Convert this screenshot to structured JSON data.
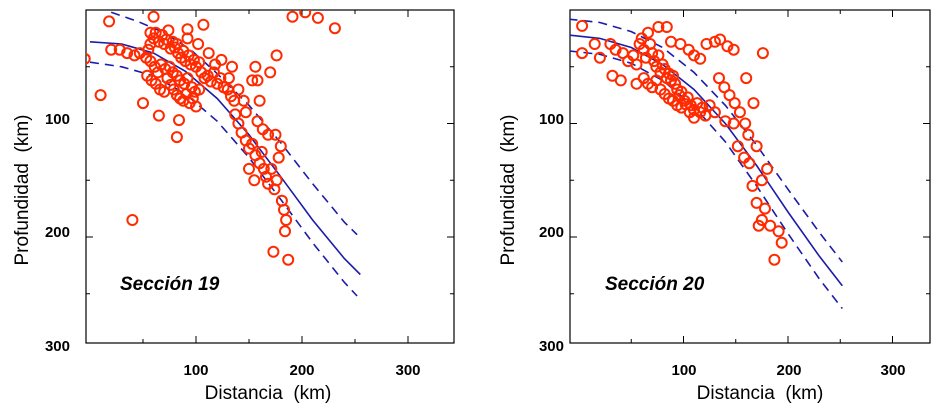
{
  "chart_data": [
    {
      "type": "scatter",
      "title": "",
      "annotation": "Sección 19",
      "xlabel": "Distancia  (km)",
      "ylabel": "Profundidad  (km)",
      "xlim": [
        0,
        345
      ],
      "ylim": [
        300,
        0
      ],
      "x_ticks": [
        100,
        200,
        300
      ],
      "y_ticks": [
        100,
        200,
        300
      ],
      "y_inverted": true,
      "marker_color": "#ff2a00",
      "curve_color": "#1c1ca8",
      "points": [
        [
          18,
          10
        ],
        [
          60,
          6
        ],
        [
          107,
          13
        ],
        [
          -5,
          43
        ],
        [
          10,
          75
        ],
        [
          20,
          35
        ],
        [
          28,
          35
        ],
        [
          35,
          38
        ],
        [
          42,
          40
        ],
        [
          47,
          38
        ],
        [
          53,
          42
        ],
        [
          55,
          35
        ],
        [
          57,
          30
        ],
        [
          60,
          25
        ],
        [
          62,
          20
        ],
        [
          65,
          28
        ],
        [
          68,
          22
        ],
        [
          70,
          30
        ],
        [
          72,
          26
        ],
        [
          74,
          18
        ],
        [
          76,
          34
        ],
        [
          78,
          28
        ],
        [
          80,
          33
        ],
        [
          83,
          38
        ],
        [
          86,
          42
        ],
        [
          88,
          36
        ],
        [
          90,
          45
        ],
        [
          93,
          40
        ],
        [
          95,
          48
        ],
        [
          98,
          44
        ],
        [
          100,
          50
        ],
        [
          103,
          46
        ],
        [
          105,
          55
        ],
        [
          108,
          60
        ],
        [
          111,
          58
        ],
        [
          114,
          63
        ],
        [
          117,
          55
        ],
        [
          120,
          65
        ],
        [
          123,
          60
        ],
        [
          126,
          68
        ],
        [
          130,
          70
        ],
        [
          133,
          76
        ],
        [
          136,
          80
        ],
        [
          54,
          58
        ],
        [
          58,
          62
        ],
        [
          62,
          65
        ],
        [
          66,
          70
        ],
        [
          70,
          72
        ],
        [
          73,
          60
        ],
        [
          76,
          66
        ],
        [
          79,
          70
        ],
        [
          82,
          75
        ],
        [
          85,
          78
        ],
        [
          88,
          80
        ],
        [
          91,
          74
        ],
        [
          94,
          82
        ],
        [
          97,
          78
        ],
        [
          100,
          85
        ],
        [
          57,
          45
        ],
        [
          61,
          50
        ],
        [
          64,
          55
        ],
        [
          67,
          48
        ],
        [
          71,
          52
        ],
        [
          75,
          50
        ],
        [
          78,
          55
        ],
        [
          82,
          58
        ],
        [
          85,
          62
        ],
        [
          89,
          65
        ],
        [
          92,
          60
        ],
        [
          96,
          68
        ],
        [
          99,
          72
        ],
        [
          103,
          70
        ],
        [
          65,
          93
        ],
        [
          84,
          97
        ],
        [
          82,
          112
        ],
        [
          50,
          82
        ],
        [
          40,
          185
        ],
        [
          82,
          30
        ],
        [
          92,
          25
        ],
        [
          102,
          30
        ],
        [
          112,
          38
        ],
        [
          118,
          48
        ],
        [
          124,
          44
        ],
        [
          92,
          17
        ],
        [
          57,
          20
        ],
        [
          140,
          100
        ],
        [
          143,
          108
        ],
        [
          147,
          115
        ],
        [
          150,
          122
        ],
        [
          153,
          118
        ],
        [
          156,
          128
        ],
        [
          160,
          135
        ],
        [
          162,
          125
        ],
        [
          164,
          140
        ],
        [
          166,
          147
        ],
        [
          168,
          153
        ],
        [
          171,
          140
        ],
        [
          174,
          158
        ],
        [
          176,
          150
        ],
        [
          178,
          130
        ],
        [
          181,
          168
        ],
        [
          183,
          176
        ],
        [
          185,
          185
        ],
        [
          184,
          195
        ],
        [
          187,
          220
        ],
        [
          180,
          120
        ],
        [
          175,
          110
        ],
        [
          150,
          140
        ],
        [
          155,
          150
        ],
        [
          173,
          213
        ],
        [
          153,
          62
        ],
        [
          158,
          62
        ],
        [
          156,
          50
        ],
        [
          160,
          80
        ],
        [
          176,
          40
        ],
        [
          170,
          55
        ],
        [
          145,
          80
        ],
        [
          147,
          90
        ],
        [
          137,
          92
        ],
        [
          140,
          70
        ],
        [
          131,
          60
        ],
        [
          134,
          50
        ],
        [
          163,
          105
        ],
        [
          168,
          110
        ],
        [
          158,
          98
        ],
        [
          191,
          6
        ],
        [
          203,
          2
        ],
        [
          215,
          7
        ],
        [
          231,
          16
        ]
      ],
      "curves": [
        {
          "style": "solid",
          "x": [
            0,
            30,
            60,
            90,
            120,
            150,
            180,
            210,
            240,
            255
          ],
          "y": [
            28,
            30,
            38,
            54,
            78,
            110,
            147,
            185,
            219,
            233
          ]
        },
        {
          "style": "dashed",
          "x": [
            20,
            45,
            70,
            95,
            120,
            150,
            180,
            210,
            240,
            252
          ],
          "y": [
            2,
            10,
            20,
            35,
            56,
            84,
            117,
            153,
            187,
            198
          ]
        },
        {
          "style": "dashed",
          "x": [
            0,
            30,
            60,
            90,
            120,
            150,
            180,
            210,
            240,
            252
          ],
          "y": [
            46,
            50,
            58,
            74,
            98,
            130,
            167,
            205,
            240,
            252
          ]
        }
      ]
    },
    {
      "type": "scatter",
      "title": "",
      "annotation": "Sección 20",
      "xlabel": "Distancia  (km)",
      "ylabel": "Profundidad  (km)",
      "xlim": [
        0,
        345
      ],
      "ylim": [
        300,
        0
      ],
      "x_ticks": [
        100,
        200,
        300
      ],
      "y_ticks": [
        100,
        200,
        300
      ],
      "y_inverted": true,
      "marker_color": "#ff2a00",
      "curve_color": "#1c1ca8",
      "points": [
        [
          3,
          14
        ],
        [
          3,
          38
        ],
        [
          15,
          30
        ],
        [
          20,
          42
        ],
        [
          30,
          30
        ],
        [
          35,
          35
        ],
        [
          42,
          38
        ],
        [
          47,
          45
        ],
        [
          52,
          40
        ],
        [
          55,
          48
        ],
        [
          58,
          30
        ],
        [
          60,
          25
        ],
        [
          62,
          35
        ],
        [
          64,
          42
        ],
        [
          66,
          20
        ],
        [
          68,
          30
        ],
        [
          70,
          38
        ],
        [
          72,
          45
        ],
        [
          74,
          50
        ],
        [
          76,
          40
        ],
        [
          78,
          55
        ],
        [
          80,
          48
        ],
        [
          82,
          52
        ],
        [
          84,
          60
        ],
        [
          86,
          56
        ],
        [
          88,
          62
        ],
        [
          90,
          58
        ],
        [
          92,
          65
        ],
        [
          94,
          70
        ],
        [
          96,
          75
        ],
        [
          98,
          72
        ],
        [
          101,
          80
        ],
        [
          104,
          77
        ],
        [
          107,
          84
        ],
        [
          110,
          88
        ],
        [
          113,
          82
        ],
        [
          116,
          90
        ],
        [
          118,
          86
        ],
        [
          121,
          93
        ],
        [
          125,
          84
        ],
        [
          130,
          90
        ],
        [
          76,
          15
        ],
        [
          88,
          28
        ],
        [
          97,
          30
        ],
        [
          105,
          35
        ],
        [
          110,
          40
        ],
        [
          116,
          43
        ],
        [
          122,
          30
        ],
        [
          130,
          28
        ],
        [
          135,
          26
        ],
        [
          142,
          32
        ],
        [
          148,
          35
        ],
        [
          62,
          60
        ],
        [
          66,
          65
        ],
        [
          70,
          68
        ],
        [
          74,
          62
        ],
        [
          78,
          70
        ],
        [
          82,
          74
        ],
        [
          86,
          78
        ],
        [
          90,
          80
        ],
        [
          94,
          84
        ],
        [
          98,
          86
        ],
        [
          102,
          83
        ],
        [
          106,
          90
        ],
        [
          110,
          95
        ],
        [
          40,
          62
        ],
        [
          32,
          58
        ],
        [
          55,
          65
        ],
        [
          84,
          15
        ],
        [
          176,
          38
        ],
        [
          134,
          60
        ],
        [
          139,
          68
        ],
        [
          144,
          75
        ],
        [
          149,
          82
        ],
        [
          154,
          90
        ],
        [
          159,
          100
        ],
        [
          162,
          110
        ],
        [
          167,
          82
        ],
        [
          160,
          60
        ],
        [
          172,
          190
        ],
        [
          175,
          185
        ],
        [
          178,
          175
        ],
        [
          183,
          190
        ],
        [
          187,
          220
        ],
        [
          191,
          195
        ],
        [
          194,
          205
        ],
        [
          166,
          155
        ],
        [
          170,
          170
        ],
        [
          175,
          150
        ],
        [
          180,
          140
        ],
        [
          158,
          130
        ],
        [
          152,
          120
        ],
        [
          163,
          135
        ],
        [
          170,
          120
        ],
        [
          148,
          100
        ],
        [
          140,
          98
        ]
      ],
      "curves": [
        {
          "style": "solid",
          "x": [
            -10,
            20,
            50,
            80,
            110,
            140,
            170,
            200,
            230,
            252
          ],
          "y": [
            22,
            25,
            33,
            48,
            70,
            100,
            137,
            178,
            217,
            243
          ]
        },
        {
          "style": "dashed",
          "x": [
            -10,
            20,
            50,
            80,
            110,
            140,
            170,
            200,
            230,
            252
          ],
          "y": [
            8,
            11,
            19,
            33,
            55,
            84,
            119,
            158,
            196,
            222
          ]
        },
        {
          "style": "dashed",
          "x": [
            -10,
            20,
            50,
            80,
            110,
            140,
            170,
            200,
            230,
            252
          ],
          "y": [
            36,
            39,
            47,
            62,
            85,
            116,
            155,
            197,
            237,
            263
          ]
        }
      ]
    }
  ]
}
